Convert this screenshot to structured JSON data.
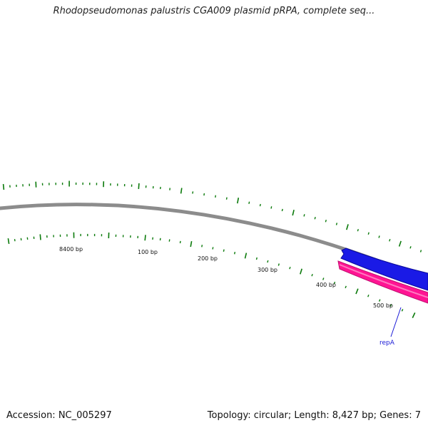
{
  "title": "Rhodopseudomonas palustris CGA009 plasmid pRPA, complete seq...",
  "footer": {
    "accession": "Accession: NC_005297",
    "summary": "Topology: circular; Length: 8,427 bp; Genes: 7"
  },
  "map": {
    "topology": "circular",
    "length_bp": 8427,
    "gene_count": 7,
    "position_labels": [
      "8400 bp",
      "100 bp",
      "200 bp",
      "300 bp",
      "400 bp",
      "500 bp"
    ],
    "features": [
      {
        "name": "repA",
        "strand": "forward",
        "color": "#1a1ae6"
      },
      {
        "name": "",
        "strand": "forward",
        "color": "#ff1493"
      }
    ],
    "colors": {
      "backbone": "#8c8c8c",
      "ticks": "#0b7a0b",
      "gene_label": "#1a1ad6"
    }
  }
}
